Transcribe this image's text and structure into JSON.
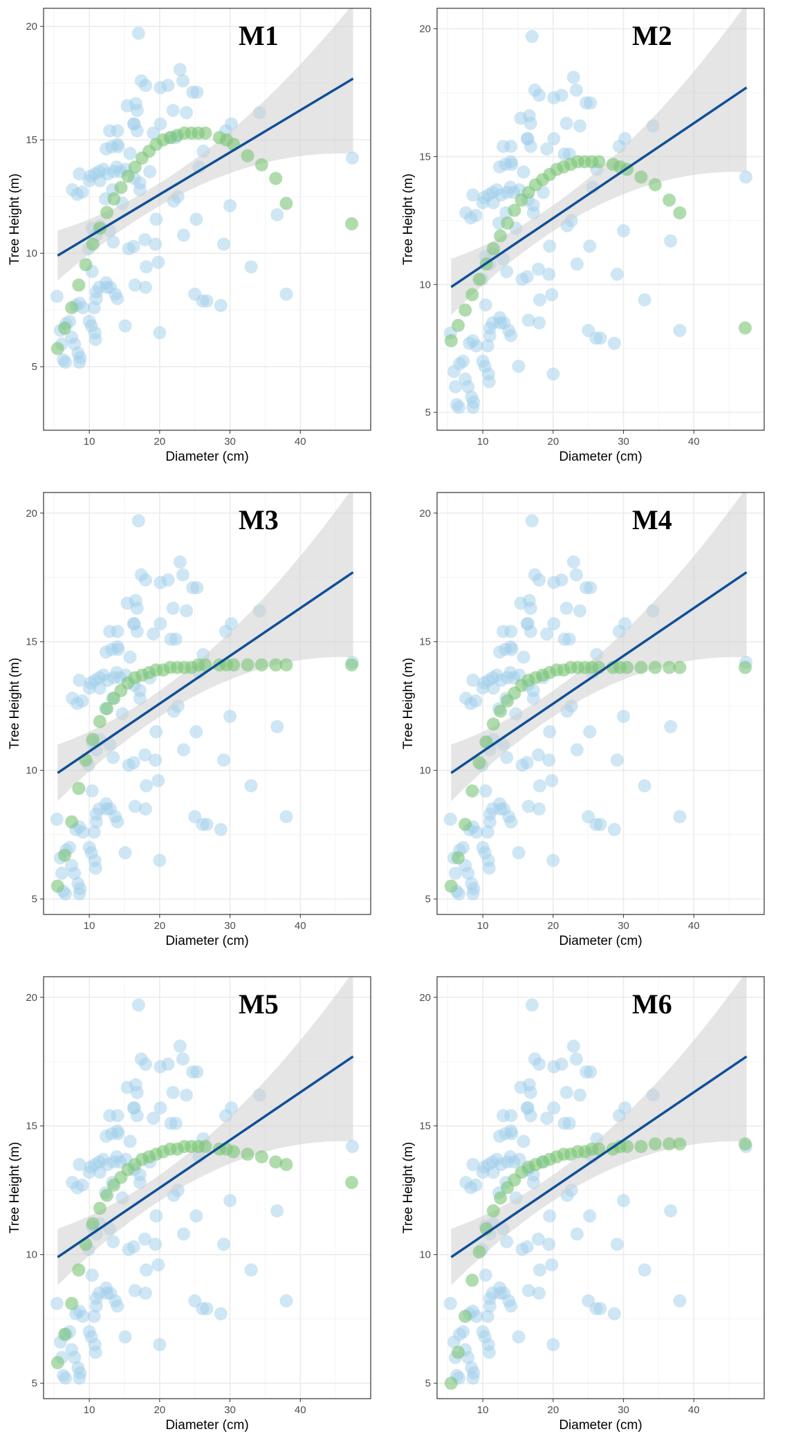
{
  "figure": {
    "colors": {
      "observed": "#9fcdea",
      "predicted": "#7cc576",
      "fit_line": "#0f4f96",
      "ci_band": "#cfcfcf",
      "grid": "#ebebeb",
      "border": "#333333"
    }
  },
  "chart_data": [
    {
      "type": "scatter",
      "title": "M1",
      "xlabel": "Diameter (cm)",
      "ylabel": "Tree Height (m)",
      "xlim": [
        3.5,
        50
      ],
      "ylim": [
        2.2,
        20.8
      ],
      "xticks": [
        10,
        20,
        30,
        40
      ],
      "yticks": [
        5,
        10,
        15,
        20
      ],
      "linear_fit": {
        "x": [
          5.5,
          47.5
        ],
        "y": [
          9.9,
          17.7
        ],
        "ci_lower_at_ends": [
          8.8,
          14.3
        ],
        "ci_upper_at_ends": [
          11.0,
          21.0
        ]
      },
      "predicted": {
        "d": [
          5.5,
          6.5,
          7.5,
          8.5,
          9.5,
          10.5,
          11.5,
          12.5,
          13.5,
          14.5,
          15.5,
          16.5,
          17.5,
          18.5,
          19.5,
          20.5,
          21.5,
          22.5,
          23.5,
          24.5,
          25.5,
          26.5,
          28.5,
          29.5,
          30.5,
          32.5,
          34.5,
          36.5,
          38.0,
          47.3
        ],
        "h": [
          5.8,
          6.7,
          7.6,
          8.6,
          9.5,
          10.4,
          11.1,
          11.8,
          12.4,
          12.9,
          13.4,
          13.8,
          14.2,
          14.5,
          14.8,
          15.0,
          15.1,
          15.2,
          15.3,
          15.3,
          15.3,
          15.3,
          15.1,
          15.0,
          14.8,
          14.3,
          13.9,
          13.3,
          12.2,
          11.3
        ]
      }
    },
    {
      "type": "scatter",
      "title": "M2",
      "xlabel": "Diameter (cm)",
      "ylabel": "Tree Height (m)",
      "xlim": [
        3.5,
        50
      ],
      "ylim": [
        4.3,
        20.8
      ],
      "xticks": [
        10,
        20,
        30,
        40
      ],
      "yticks": [
        5,
        10,
        15,
        20
      ],
      "linear_fit": {
        "x": [
          5.5,
          47.5
        ],
        "y": [
          9.9,
          17.7
        ],
        "ci_lower_at_ends": [
          8.8,
          14.3
        ],
        "ci_upper_at_ends": [
          11.0,
          21.0
        ]
      },
      "predicted": {
        "d": [
          5.5,
          6.5,
          7.5,
          8.5,
          9.5,
          10.5,
          11.5,
          12.5,
          13.5,
          14.5,
          15.5,
          16.5,
          17.5,
          18.5,
          19.5,
          20.5,
          21.5,
          22.5,
          23.5,
          24.5,
          25.5,
          26.5,
          28.5,
          29.5,
          30.5,
          32.5,
          34.5,
          36.5,
          38.0,
          47.3
        ],
        "h": [
          7.8,
          8.4,
          9.0,
          9.6,
          10.2,
          10.8,
          11.4,
          11.9,
          12.4,
          12.9,
          13.3,
          13.6,
          13.9,
          14.1,
          14.3,
          14.5,
          14.6,
          14.7,
          14.8,
          14.8,
          14.8,
          14.8,
          14.7,
          14.6,
          14.5,
          14.2,
          13.9,
          13.3,
          12.8,
          8.3
        ]
      }
    },
    {
      "type": "scatter",
      "title": "M3",
      "xlabel": "Diameter (cm)",
      "ylabel": "Tree Height (m)",
      "xlim": [
        3.5,
        50
      ],
      "ylim": [
        4.4,
        20.8
      ],
      "xticks": [
        10,
        20,
        30,
        40
      ],
      "yticks": [
        5,
        10,
        15,
        20
      ],
      "linear_fit": {
        "x": [
          5.5,
          47.5
        ],
        "y": [
          9.9,
          17.7
        ],
        "ci_lower_at_ends": [
          8.8,
          14.3
        ],
        "ci_upper_at_ends": [
          11.0,
          21.0
        ]
      },
      "predicted": {
        "d": [
          5.5,
          6.5,
          7.5,
          8.5,
          9.5,
          10.5,
          11.5,
          12.5,
          13.5,
          14.5,
          15.5,
          16.5,
          17.5,
          18.5,
          19.5,
          20.5,
          21.5,
          22.5,
          23.5,
          24.5,
          25.5,
          26.5,
          28.5,
          29.5,
          30.5,
          32.5,
          34.5,
          36.5,
          38.0,
          47.3
        ],
        "h": [
          5.5,
          6.7,
          8.0,
          9.3,
          10.4,
          11.2,
          11.9,
          12.4,
          12.8,
          13.1,
          13.4,
          13.6,
          13.7,
          13.8,
          13.9,
          13.9,
          14.0,
          14.0,
          14.0,
          14.0,
          14.1,
          14.1,
          14.1,
          14.1,
          14.1,
          14.1,
          14.1,
          14.1,
          14.1,
          14.1
        ]
      }
    },
    {
      "type": "scatter",
      "title": "M4",
      "xlabel": "Diameter (cm)",
      "ylabel": "Tree Height (m)",
      "xlim": [
        3.5,
        50
      ],
      "ylim": [
        4.4,
        20.8
      ],
      "xticks": [
        10,
        20,
        30,
        40
      ],
      "yticks": [
        5,
        10,
        15,
        20
      ],
      "linear_fit": {
        "x": [
          5.5,
          47.5
        ],
        "y": [
          9.9,
          17.7
        ],
        "ci_lower_at_ends": [
          8.8,
          14.3
        ],
        "ci_upper_at_ends": [
          11.0,
          21.0
        ]
      },
      "predicted": {
        "d": [
          5.5,
          6.5,
          7.5,
          8.5,
          9.5,
          10.5,
          11.5,
          12.5,
          13.5,
          14.5,
          15.5,
          16.5,
          17.5,
          18.5,
          19.5,
          20.5,
          21.5,
          22.5,
          23.5,
          24.5,
          25.5,
          26.5,
          28.5,
          29.5,
          30.5,
          32.5,
          34.5,
          36.5,
          38.0,
          47.3
        ],
        "h": [
          5.5,
          6.6,
          7.9,
          9.2,
          10.3,
          11.1,
          11.8,
          12.3,
          12.7,
          13.0,
          13.3,
          13.5,
          13.6,
          13.7,
          13.8,
          13.9,
          13.9,
          14.0,
          14.0,
          14.0,
          14.0,
          14.0,
          14.0,
          14.0,
          14.0,
          14.0,
          14.0,
          14.0,
          14.0,
          14.0
        ]
      }
    },
    {
      "type": "scatter",
      "title": "M5",
      "xlabel": "Diameter (cm)",
      "ylabel": "Tree Height (m)",
      "xlim": [
        3.5,
        50
      ],
      "ylim": [
        4.4,
        20.8
      ],
      "xticks": [
        10,
        20,
        30,
        40
      ],
      "yticks": [
        5,
        10,
        15,
        20
      ],
      "linear_fit": {
        "x": [
          5.5,
          47.5
        ],
        "y": [
          9.9,
          17.7
        ],
        "ci_lower_at_ends": [
          8.8,
          14.3
        ],
        "ci_upper_at_ends": [
          11.0,
          21.0
        ]
      },
      "predicted": {
        "d": [
          5.5,
          6.5,
          7.5,
          8.5,
          9.5,
          10.5,
          11.5,
          12.5,
          13.5,
          14.5,
          15.5,
          16.5,
          17.5,
          18.5,
          19.5,
          20.5,
          21.5,
          22.5,
          23.5,
          24.5,
          25.5,
          26.5,
          28.5,
          29.5,
          30.5,
          32.5,
          34.5,
          36.5,
          38.0,
          47.3
        ],
        "h": [
          5.8,
          6.9,
          8.1,
          9.4,
          10.4,
          11.2,
          11.8,
          12.3,
          12.7,
          13.0,
          13.3,
          13.5,
          13.7,
          13.8,
          13.9,
          14.0,
          14.1,
          14.1,
          14.2,
          14.2,
          14.2,
          14.2,
          14.1,
          14.1,
          14.0,
          13.9,
          13.8,
          13.6,
          13.5,
          12.8
        ]
      }
    },
    {
      "type": "scatter",
      "title": "M6",
      "xlabel": "Diameter (cm)",
      "ylabel": "Tree Height (m)",
      "xlim": [
        3.5,
        50
      ],
      "ylim": [
        4.4,
        20.8
      ],
      "xticks": [
        10,
        20,
        30,
        40
      ],
      "yticks": [
        5,
        10,
        15,
        20
      ],
      "linear_fit": {
        "x": [
          5.5,
          47.5
        ],
        "y": [
          9.9,
          17.7
        ],
        "ci_lower_at_ends": [
          8.8,
          14.3
        ],
        "ci_upper_at_ends": [
          11.0,
          21.0
        ]
      },
      "predicted": {
        "d": [
          5.5,
          6.5,
          7.5,
          8.5,
          9.5,
          10.5,
          11.5,
          12.5,
          13.5,
          14.5,
          15.5,
          16.5,
          17.5,
          18.5,
          19.5,
          20.5,
          21.5,
          22.5,
          23.5,
          24.5,
          25.5,
          26.5,
          28.5,
          29.5,
          30.5,
          32.5,
          34.5,
          36.5,
          38.0,
          47.3
        ],
        "h": [
          5.0,
          6.2,
          7.6,
          9.0,
          10.1,
          11.0,
          11.7,
          12.2,
          12.6,
          12.9,
          13.2,
          13.4,
          13.5,
          13.6,
          13.7,
          13.8,
          13.9,
          13.9,
          14.0,
          14.0,
          14.1,
          14.1,
          14.1,
          14.2,
          14.2,
          14.2,
          14.3,
          14.3,
          14.3,
          14.3
        ]
      }
    }
  ],
  "observed_points": {
    "note_series": "Observed",
    "d": [
      17.0,
      22.9,
      17.4,
      18.0,
      20.1,
      21.2,
      23.3,
      21.9,
      15.4,
      16.6,
      16.8,
      25.3,
      24.7,
      16.3,
      19.1,
      21.6,
      14.0,
      16.8,
      23.8,
      16.4,
      13.2,
      12.9,
      14.0,
      12.4,
      14.1,
      20.1,
      15.8,
      22.3,
      29.4,
      30.2,
      34.2,
      13.9,
      11.4,
      12.6,
      12.0,
      13.5,
      14.4,
      15.2,
      18.6,
      16.4,
      17.2,
      26.2,
      10.2,
      8.6,
      7.6,
      8.3,
      11.5,
      9.0,
      10.0,
      10.8,
      12.3,
      13.3,
      17.2,
      14.7,
      22.0,
      22.6,
      25.6,
      19.5,
      25.2,
      11.5,
      10.4,
      11.0,
      12.9,
      9.9,
      13.4,
      17.9,
      15.6,
      19.4,
      29.1,
      30.0,
      36.7,
      16.3,
      23.4,
      18.1,
      19.8,
      10.4,
      11.4,
      11.0,
      11.0,
      10.7,
      12.4,
      13.0,
      13.7,
      14.0,
      16.5,
      18.0,
      25.0,
      33.0,
      38.0,
      26.1,
      26.7,
      28.7,
      12.5,
      15.1,
      20.0,
      8.1,
      8.6,
      9.1,
      10.0,
      10.3,
      10.8,
      10.9,
      5.4,
      5.9,
      6.1,
      6.7,
      7.2,
      7.5,
      7.9,
      8.4,
      8.7,
      6.3,
      6.6,
      8.6,
      47.4
    ],
    "h": [
      19.7,
      18.1,
      17.6,
      17.4,
      17.3,
      17.4,
      17.6,
      16.3,
      16.5,
      16.6,
      16.3,
      17.1,
      17.1,
      15.7,
      15.3,
      15.1,
      15.4,
      15.4,
      16.2,
      15.7,
      14.7,
      15.4,
      14.8,
      14.6,
      14.7,
      15.7,
      14.4,
      15.1,
      15.4,
      15.7,
      16.2,
      13.8,
      13.6,
      13.5,
      13.7,
      13.6,
      13.6,
      13.7,
      13.6,
      13.3,
      13.1,
      14.5,
      13.4,
      13.5,
      12.8,
      12.6,
      13.2,
      12.7,
      13.2,
      13.5,
      12.4,
      12.8,
      12.8,
      12.2,
      12.3,
      12.5,
      13.8,
      11.5,
      11.5,
      11.2,
      11.1,
      10.8,
      11.0,
      10.2,
      10.5,
      10.6,
      10.2,
      10.4,
      10.4,
      12.1,
      11.7,
      10.3,
      10.8,
      9.4,
      9.6,
      9.2,
      8.5,
      8.0,
      8.3,
      7.6,
      8.7,
      8.5,
      8.2,
      8.0,
      8.6,
      8.5,
      8.2,
      9.4,
      8.2,
      7.9,
      7.9,
      7.7,
      8.5,
      6.8,
      6.5,
      7.7,
      7.8,
      7.6,
      7.0,
      6.8,
      6.5,
      6.2,
      8.1,
      6.6,
      6.0,
      6.9,
      7.0,
      6.3,
      6.0,
      5.6,
      5.4,
      5.3,
      5.2,
      5.2,
      14.2
    ],
    "notes": "Observed scatter (blue, semi-transparent) repeated identically in all six panels"
  }
}
